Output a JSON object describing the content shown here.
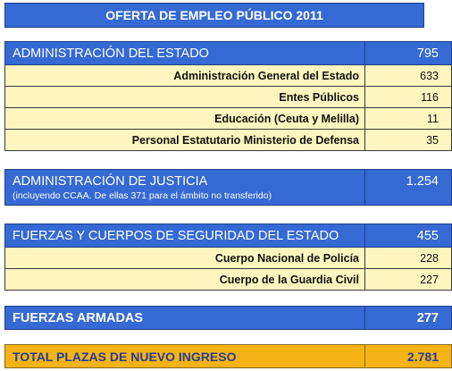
{
  "title": "OFERTA DE EMPLEO PÚBLICO 2011",
  "sections": {
    "estado": {
      "label": "ADMINISTRACIÓN DEL ESTADO",
      "value": "795",
      "items": [
        {
          "label": "Administración General del Estado",
          "value": "633"
        },
        {
          "label": "Entes Públicos",
          "value": "116"
        },
        {
          "label": "Educación (Ceuta y Melilla)",
          "value": "11"
        },
        {
          "label": "Personal Estatutario Ministerio de Defensa",
          "value": "35"
        }
      ]
    },
    "justicia": {
      "label": "ADMINISTRACIÓN DE JUSTICIA",
      "note": "(incluyendo CCAA. De ellas 371 para el ámbito no transferido)",
      "value": "1.254"
    },
    "seguridad": {
      "label": "FUERZAS Y CUERPOS DE SEGURIDAD DEL ESTADO",
      "value": "455",
      "items": [
        {
          "label": "Cuerpo Nacional de Policía",
          "value": "228"
        },
        {
          "label": "Cuerpo de la Guardia Civil",
          "value": "227"
        }
      ]
    },
    "armadas": {
      "label": "FUERZAS ARMADAS",
      "value": "277"
    },
    "total": {
      "label": "TOTAL PLAZAS DE NUEVO INGRESO",
      "value": "2.781"
    }
  }
}
